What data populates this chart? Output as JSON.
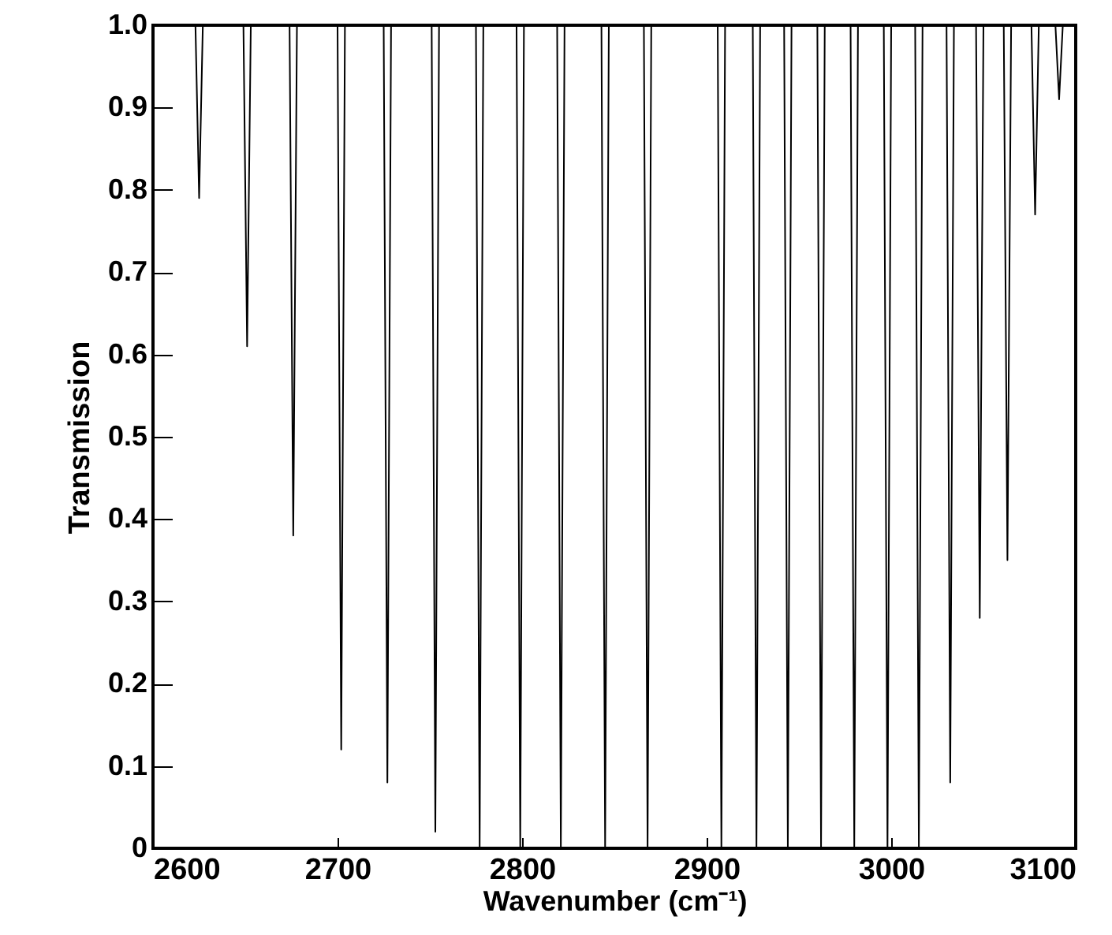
{
  "chart_data": {
    "type": "line",
    "xlabel": "Wavenumber (cm⁻¹)",
    "ylabel": "Transmission",
    "x": [
      2600,
      2623,
      2625,
      2627,
      2649,
      2651,
      2653,
      2674,
      2676,
      2678,
      2700,
      2702,
      2704,
      2725,
      2727,
      2729,
      2751,
      2753,
      2755,
      2775,
      2777,
      2779,
      2797,
      2799,
      2801,
      2819,
      2821,
      2823,
      2843,
      2845,
      2847,
      2866,
      2868,
      2870,
      2906,
      2908,
      2910,
      2925,
      2927,
      2929,
      2942,
      2944,
      2946,
      2960,
      2962,
      2964,
      2978,
      2980,
      2982,
      2996,
      2998,
      3000,
      3013,
      3015,
      3017,
      3030,
      3032,
      3034,
      3046,
      3048,
      3050,
      3061,
      3063,
      3065,
      3076,
      3078,
      3080,
      3089,
      3091,
      3093,
      3100
    ],
    "series": [
      {
        "color": "#000000",
        "values": [
          1,
          1,
          0.79,
          1,
          1,
          0.61,
          1,
          1,
          0.38,
          1,
          1,
          0.12,
          1,
          1,
          0.08,
          1,
          1,
          0.02,
          1,
          1,
          0,
          1,
          1,
          0,
          1,
          1,
          0,
          1,
          1,
          0,
          1,
          1,
          0,
          1,
          1,
          0,
          1,
          1,
          0,
          1,
          1,
          0,
          1,
          1,
          0,
          1,
          1,
          0,
          1,
          1,
          0,
          1,
          1,
          0,
          1,
          1,
          0.08,
          1,
          1,
          0.28,
          1,
          1,
          0.35,
          1,
          1,
          0.77,
          1,
          1,
          0.91,
          1,
          1
        ]
      }
    ],
    "xlim": [
      2600,
      3100
    ],
    "xticks": [
      2600,
      2700,
      2800,
      2900,
      3000,
      3100
    ],
    "ylim": [
      0,
      1
    ],
    "yticks": [
      0,
      0.1,
      0.2,
      0.3,
      0.4,
      0.5,
      0.6,
      0.7,
      0.8,
      0.9,
      {
        "value": 1,
        "label": "1.0"
      }
    ],
    "grid": false,
    "marker": "none",
    "line_style": "solid"
  }
}
